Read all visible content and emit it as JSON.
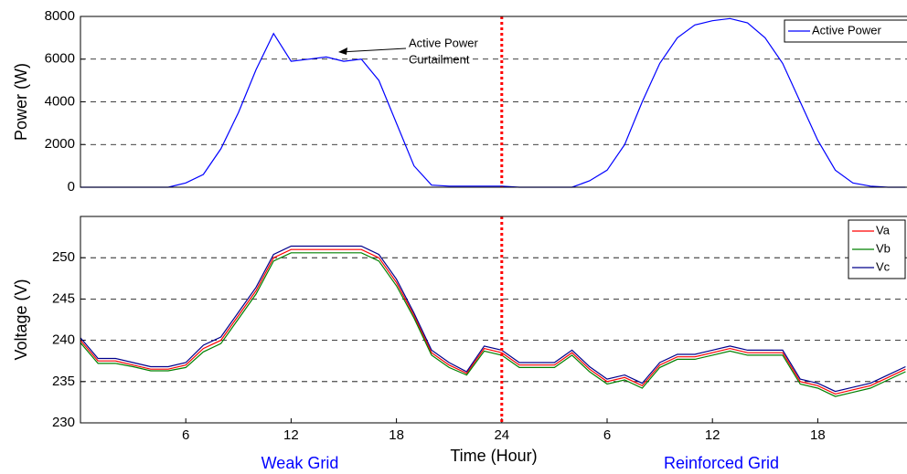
{
  "chart_data": [
    {
      "type": "line",
      "ylabel": "Power (W)",
      "x": [
        0,
        1,
        2,
        3,
        4,
        5,
        6,
        7,
        8,
        9,
        10,
        11,
        12,
        13,
        14,
        15,
        16,
        17,
        18,
        19,
        20,
        21,
        22,
        23,
        24,
        25,
        26,
        27,
        28,
        29,
        30,
        31,
        32,
        33,
        34,
        35,
        36,
        37,
        38,
        39,
        40,
        41,
        42,
        43,
        44,
        45,
        46,
        47
      ],
      "series": [
        {
          "name": "Active Power",
          "color": "#0000ff",
          "values": [
            0,
            0,
            0,
            0,
            0,
            0,
            200,
            600,
            1800,
            3500,
            5500,
            7200,
            5900,
            6000,
            6100,
            5900,
            6000,
            5000,
            3000,
            1000,
            100,
            50,
            50,
            50,
            50,
            0,
            0,
            0,
            0,
            300,
            800,
            2000,
            4000,
            5800,
            7000,
            7600,
            7800,
            7900,
            7700,
            7000,
            5800,
            4000,
            2200,
            800,
            200,
            50,
            0,
            0
          ]
        }
      ],
      "xlim": [
        0,
        47.5
      ],
      "ylim": [
        0,
        8000
      ],
      "yticks": [
        0,
        2000,
        4000,
        6000,
        8000
      ],
      "grid": true,
      "vline": 24,
      "vline_color": "#ff0000",
      "annotations": [
        "Active Power",
        "Curtailment"
      ],
      "legend": "upper right"
    },
    {
      "type": "line",
      "ylabel": "Voltage (V)",
      "xlabel": "Time (Hour)",
      "x": [
        0,
        1,
        2,
        3,
        4,
        5,
        6,
        7,
        8,
        9,
        10,
        11,
        12,
        13,
        14,
        15,
        16,
        17,
        18,
        19,
        20,
        21,
        22,
        23,
        24,
        25,
        26,
        27,
        28,
        29,
        30,
        31,
        32,
        33,
        34,
        35,
        36,
        37,
        38,
        39,
        40,
        41,
        42,
        43,
        44,
        45,
        46,
        47
      ],
      "series": [
        {
          "name": "Va",
          "color": "#ff0000",
          "values": [
            240,
            237.5,
            237.5,
            237,
            236.5,
            236.5,
            237,
            239,
            240,
            243,
            246,
            250,
            251,
            251,
            251,
            251,
            251,
            250,
            247,
            243,
            238.5,
            237,
            236,
            239,
            238.5,
            237,
            237,
            237,
            238.5,
            236.5,
            235,
            235.5,
            234.5,
            237,
            238,
            238,
            238.5,
            239,
            238.5,
            238.5,
            238.5,
            235,
            234.5,
            233.5,
            234,
            234.5,
            235.5,
            236.5
          ]
        },
        {
          "name": "Vb",
          "color": "#008000",
          "values": [
            239.7,
            237.2,
            237.2,
            236.8,
            236.3,
            236.3,
            236.7,
            238.6,
            239.6,
            242.6,
            245.6,
            249.6,
            250.6,
            250.6,
            250.6,
            250.6,
            250.6,
            249.6,
            246.6,
            242.7,
            238.2,
            236.7,
            235.8,
            238.7,
            238.2,
            236.7,
            236.7,
            236.7,
            238.2,
            236.2,
            234.7,
            235.2,
            234.2,
            236.7,
            237.7,
            237.7,
            238.2,
            238.7,
            238.2,
            238.2,
            238.2,
            234.7,
            234.2,
            233.2,
            233.7,
            234.2,
            235.2,
            236.2
          ]
        },
        {
          "name": "Vc",
          "color": "#00008b",
          "values": [
            240.3,
            237.8,
            237.8,
            237.3,
            236.8,
            236.8,
            237.3,
            239.4,
            240.4,
            243.4,
            246.4,
            250.4,
            251.4,
            251.4,
            251.4,
            251.4,
            251.4,
            250.4,
            247.4,
            243.3,
            238.8,
            237.3,
            236.2,
            239.3,
            238.8,
            237.3,
            237.3,
            237.3,
            238.8,
            236.8,
            235.3,
            235.8,
            234.8,
            237.3,
            238.3,
            238.3,
            238.8,
            239.3,
            238.8,
            238.8,
            238.8,
            235.3,
            234.8,
            233.8,
            234.3,
            234.8,
            235.8,
            236.8
          ]
        }
      ],
      "xlim": [
        0,
        47.5
      ],
      "ylim": [
        230,
        255
      ],
      "yticks": [
        230,
        235,
        240,
        245,
        250
      ],
      "xticks": [
        6,
        12,
        18,
        24,
        {
          "value": 30,
          "label": "6"
        },
        {
          "value": 36,
          "label": "12"
        },
        {
          "value": 42,
          "label": "18"
        }
      ],
      "grid": true,
      "vline": 24,
      "vline_color": "#ff0000",
      "regions": [
        "Weak Grid",
        "Reinforced Grid"
      ],
      "region_color": "#0000ff",
      "legend": "upper right"
    }
  ]
}
